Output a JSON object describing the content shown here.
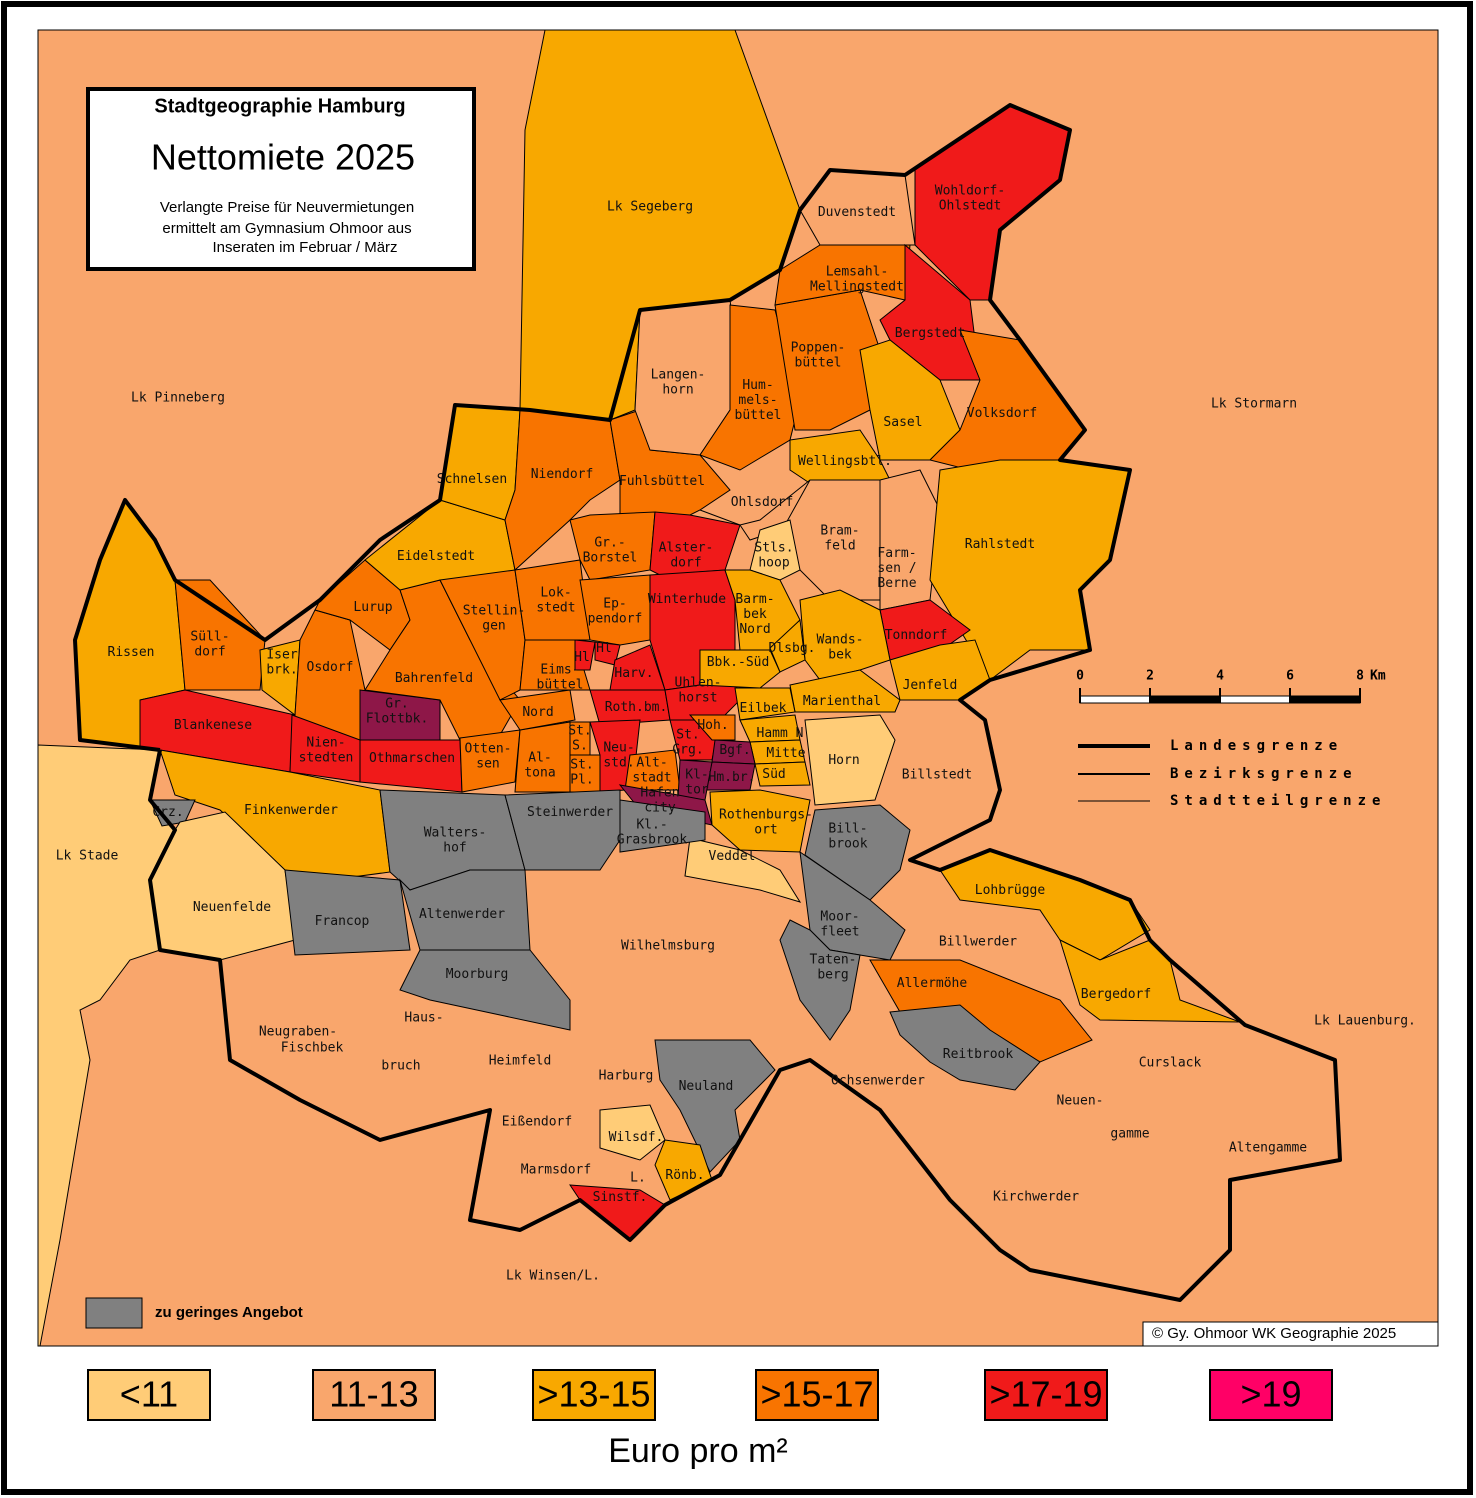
{
  "header": {
    "title": "Stadtgeographie Hamburg",
    "main": "Nettomiete 2025",
    "subtitle": [
      "Verlangte Preise für Neuvermietungen",
      "ermittelt am Gymnasium Ohmoor aus",
      "Inseraten im Februar / März"
    ]
  },
  "legend": {
    "classes": [
      {
        "label": "<11",
        "color": "#ffcc77"
      },
      {
        "label": "11-13",
        "color": "#f9a66c"
      },
      {
        "label": ">13-15",
        "color": "#f8a800"
      },
      {
        "label": ">15-17",
        "color": "#f87400"
      },
      {
        "label": ">17-19",
        "color": "#f01a1a"
      },
      {
        "label": ">19",
        "color": "#ff0066",
        "map_color": "#8e1748"
      }
    ],
    "unit": "Euro pro m²",
    "no_data": {
      "label": "zu geringes Angebot",
      "color": "#808080"
    }
  },
  "scale": {
    "ticks": [
      0,
      2,
      4,
      6,
      8
    ],
    "unit": "Km"
  },
  "boundary_legend": [
    "Landesgrenze",
    "Bezirksgrenze",
    "Stadtteilgrenze"
  ],
  "copyright": "© Gy. Ohmoor WK Geographie 2025",
  "map": {
    "base_class": "11-13",
    "surroundings": [
      {
        "label": "Lk Segeberg",
        "class": ">13-15"
      },
      {
        "label": "Lk Stade",
        "class": "<11"
      },
      {
        "label": "Lk Pinneberg"
      },
      {
        "label": "Lk Stormarn"
      },
      {
        "label": "Lk Lauenburg."
      },
      {
        "label": "Lk Winsen/L."
      }
    ],
    "districts": [
      {
        "label": [
          "Rissen"
        ],
        "class": ">13-15"
      },
      {
        "label": [
          "Süll-",
          "dorf"
        ],
        "class": ">15-17"
      },
      {
        "label": [
          "Blankenese"
        ],
        "class": ">17-19"
      },
      {
        "label": [
          "Iser",
          "brk."
        ],
        "class": ">13-15"
      },
      {
        "label": [
          "Osdorf"
        ],
        "class": ">15-17"
      },
      {
        "label": [
          "Lurup"
        ],
        "class": ">15-17"
      },
      {
        "label": [
          "Nien-",
          "stedten"
        ],
        "class": ">17-19"
      },
      {
        "label": [
          "Othmarschen"
        ],
        "class": ">17-19"
      },
      {
        "label": [
          "Gr.",
          "Flottbk."
        ],
        "class": ">19"
      },
      {
        "label": [
          "Bahrenfeld"
        ],
        "class": ">15-17"
      },
      {
        "label": [
          "Otten-",
          "sen"
        ],
        "class": ">15-17"
      },
      {
        "label": [
          "Al-",
          "tona"
        ],
        "class": ">15-17"
      },
      {
        "label": [
          "Nord"
        ],
        "class": ">15-17"
      },
      {
        "label": [
          "Eidelstedt"
        ],
        "class": ">13-15"
      },
      {
        "label": [
          "Schnelsen"
        ],
        "class": ">13-15"
      },
      {
        "label": [
          "Niendorf"
        ],
        "class": ">15-17"
      },
      {
        "label": [
          "Stellin-",
          "gen"
        ],
        "class": ">15-17"
      },
      {
        "label": [
          "Lok-",
          "stedt"
        ],
        "class": ">15-17"
      },
      {
        "label": [
          "Eims-",
          "büttel"
        ],
        "class": ">15-17"
      },
      {
        "label": [
          "Fuhlsbüttel"
        ],
        "class": ">15-17"
      },
      {
        "label": [
          "Gr.-",
          "Borstel"
        ],
        "class": ">15-17"
      },
      {
        "label": [
          "Alster-",
          "dorf"
        ],
        "class": ">17-19"
      },
      {
        "label": [
          "Ep-",
          "pendorf"
        ],
        "class": ">15-17"
      },
      {
        "label": [
          "Hl"
        ],
        "class": ">17-19"
      },
      {
        "label": [
          "Hl"
        ],
        "class": ">17-19"
      },
      {
        "label": [
          "Harv."
        ],
        "class": ">17-19"
      },
      {
        "label": [
          "Winterhude"
        ],
        "class": ">17-19"
      },
      {
        "label": [
          "Roth.bm."
        ],
        "class": ">17-19"
      },
      {
        "label": [
          "Uhlen-",
          "horst"
        ],
        "class": ">17-19"
      },
      {
        "label": [
          "St.",
          "S."
        ],
        "class": ">15-17"
      },
      {
        "label": [
          "St.",
          "Pl."
        ],
        "class": ">15-17"
      },
      {
        "label": [
          "Neu-",
          "std."
        ],
        "class": ">17-19"
      },
      {
        "label": [
          "Alt-",
          "stadt"
        ],
        "class": ">15-17"
      },
      {
        "label": [
          "St.",
          "Grg."
        ],
        "class": ">17-19"
      },
      {
        "label": [
          "Hoh."
        ],
        "class": ">15-17"
      },
      {
        "label": [
          "Langen-",
          "horn"
        ],
        "class": "11-13"
      },
      {
        "label": [
          "Hum-",
          "mels-",
          "büttel"
        ],
        "class": ">15-17"
      },
      {
        "label": [
          "Poppen-",
          "büttel"
        ],
        "class": ">15-17"
      },
      {
        "label": [
          "Lemsahl-",
          "Mellingstedt"
        ],
        "class": ">15-17"
      },
      {
        "label": [
          "Duvenstedt"
        ],
        "class": "11-13"
      },
      {
        "label": [
          "Wohldorf-",
          "Ohlstedt"
        ],
        "class": ">17-19"
      },
      {
        "label": [
          "Bergstedt"
        ],
        "class": ">17-19"
      },
      {
        "label": [
          "Sasel"
        ],
        "class": ">13-15"
      },
      {
        "label": [
          "Volksdorf"
        ],
        "class": ">15-17"
      },
      {
        "label": [
          "Wellingsbtl."
        ],
        "class": ">13-15"
      },
      {
        "label": [
          "Ohlsdorf"
        ],
        "class": "11-13"
      },
      {
        "label": [
          "Bram-",
          "feld"
        ],
        "class": "11-13"
      },
      {
        "label": [
          "Stls.",
          "hoop"
        ],
        "class": "<11"
      },
      {
        "label": [
          "Farm-",
          "sen /",
          "Berne"
        ],
        "class": "11-13"
      },
      {
        "label": [
          "Rahlstedt"
        ],
        "class": ">13-15"
      },
      {
        "label": [
          "Tonndorf"
        ],
        "class": ">17-19"
      },
      {
        "label": [
          "Wands-",
          "bek"
        ],
        "class": ">13-15"
      },
      {
        "label": [
          "Jenfeld"
        ],
        "class": ">13-15"
      },
      {
        "label": [
          "Marienthal"
        ],
        "class": ">13-15"
      },
      {
        "label": [
          "Barm-",
          "bek",
          "Nord"
        ],
        "class": ">13-15"
      },
      {
        "label": [
          "Bbk.-Süd"
        ],
        "class": ">13-15"
      },
      {
        "label": [
          "Dlsbg."
        ],
        "class": ">13-15"
      },
      {
        "label": [
          "Eilbek"
        ],
        "class": ">13-15"
      },
      {
        "label": [
          "Hamm N"
        ],
        "class": ">13-15"
      },
      {
        "label": [
          "Mitte"
        ],
        "class": ">13-15"
      },
      {
        "label": [
          "Süd"
        ],
        "class": ">13-15"
      },
      {
        "label": [
          "Bgf."
        ],
        "class": ">19"
      },
      {
        "label": [
          "Hm.br."
        ],
        "class": ">19"
      },
      {
        "label": [
          "Kl-",
          "tor"
        ],
        "class": ">19"
      },
      {
        "label": [
          "Hafen",
          "city"
        ],
        "class": ">19"
      },
      {
        "label": [
          "Horn"
        ],
        "class": "<11"
      },
      {
        "label": [
          "Rothenburgs-",
          "ort"
        ],
        "class": ">13-15"
      },
      {
        "label": [
          "Veddel"
        ],
        "class": "<11"
      },
      {
        "label": [
          "Bill-",
          "brook"
        ],
        "class": "zu geringes Angebot"
      },
      {
        "label": [
          "Moor-",
          "fleet"
        ],
        "class": "zu geringes Angebot"
      },
      {
        "label": [
          "Taten-",
          "berg"
        ],
        "class": "zu geringes Angebot"
      },
      {
        "label": [
          "Allermöhe"
        ],
        "class": ">15-17"
      },
      {
        "label": [
          "Reitbrook"
        ],
        "class": "zu geringes Angebot"
      },
      {
        "label": [
          "Lohbrügge"
        ],
        "class": ">13-15"
      },
      {
        "label": [
          "Bergedorf"
        ],
        "class": ">13-15"
      },
      {
        "label": [
          "Finkenwerder"
        ],
        "class": ">13-15"
      },
      {
        "label": [
          "Crz."
        ],
        "class": "zu geringes Angebot"
      },
      {
        "label": [
          "Neuenfelde"
        ],
        "class": "<11"
      },
      {
        "label": [
          "Francop"
        ],
        "class": "zu geringes Angebot"
      },
      {
        "label": [
          "Walters-",
          "hof"
        ],
        "class": "zu geringes Angebot"
      },
      {
        "label": [
          "Steinwerder"
        ],
        "class": "zu geringes Angebot"
      },
      {
        "label": [
          "Kl.-",
          "Grasbrook"
        ],
        "class": "zu geringes Angebot"
      },
      {
        "label": [
          "Altenwerder"
        ],
        "class": "zu geringes Angebot"
      },
      {
        "label": [
          "Moorburg"
        ],
        "class": "zu geringes Angebot"
      },
      {
        "label": [
          "Neuland"
        ],
        "class": "zu geringes Angebot"
      },
      {
        "label": [
          "Wilsdf."
        ],
        "class": "<11"
      },
      {
        "label": [
          "Rönb."
        ],
        "class": ">13-15"
      },
      {
        "label": [
          "Sinstf."
        ],
        "class": ">17-19"
      }
    ],
    "other_districts": [
      [
        "Billstedt"
      ],
      [
        "Wilhelmsburg"
      ],
      [
        "Billwerder"
      ],
      [
        "Ochsenwerder"
      ],
      [
        "Curslack"
      ],
      [
        "Neuen-",
        "gamme"
      ],
      [
        "Altengamme"
      ],
      [
        "Kirchwerder"
      ],
      [
        "Neugraben-",
        "Fischbek"
      ],
      [
        "Haus-",
        "bruch"
      ],
      [
        "Heimfeld"
      ],
      [
        "Harburg"
      ],
      [
        "Eißendorf"
      ],
      [
        "Marmsdorf"
      ],
      [
        "L."
      ]
    ]
  }
}
